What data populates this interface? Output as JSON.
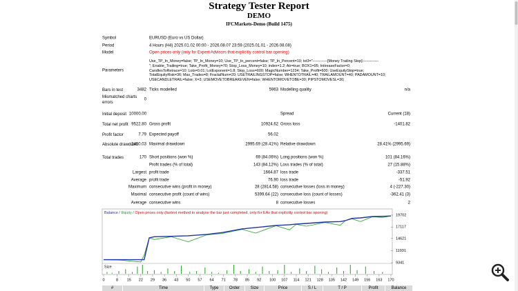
{
  "header": {
    "title": "Strategy Tester Report",
    "subtitle": "DEMO",
    "server": "IFCMarkets-Demo (Build 1475)"
  },
  "info": [
    {
      "label": "Symbol",
      "value": "EURUSD (Euro vs US Dollar)"
    },
    {
      "label": "Period",
      "value": "4 Hours (H4) 2025.01.02 00:00 - 2026.08.07 23:59 (2025.01.01 - 2026.08.08)"
    },
    {
      "label": "Model",
      "value": "Open prices only (only for Expert Advisors that explicitly control bar opening)"
    },
    {
      "label": "Parameters",
      "lines": [
        "Use_TP_In_Money=false; TP_In_Money=10; Use_TP_In_percent=false; TP_In_Percent=10; txt3=\"------------[Money Trailing Stop]-------------",
        "\"; Enable_Trailing=true; Take_Profit_Money=70; Stop_Loss_Money=10; index=1.2; Atr=true; BOX1=95; InitreaseFactor=0;",
        "CandlesToRetrace=10; Lots=0.01; LotExponent=1.8; Stop_Loss=600; MagicNumber=1234; Take_Profit=600; UseEquityStop=true;",
        "TotalEquityRisk=36; Max_Trades=8; FractalNum=20; USETRAILINGSTOP=false; WHENTOTRAIL=40; TRAILAMOUNT=40; PADAMOUNT=10;",
        "USECANDLETRAIL=false; X=3; USEMOVETOBREAKEVEN=false; WHENTOMOVETOBE=30; PIPSTOMOVESL=30;"
      ]
    }
  ],
  "stats": [
    [
      "Bars in test",
      "3482",
      "Ticks modelled",
      "5963",
      "Modelling quality",
      "n/a"
    ],
    [
      "Mismatched charts errors",
      "0",
      null,
      null,
      null,
      null
    ],
    [
      "Initial deposit",
      "10000.00",
      null,
      null,
      "Spread",
      "Current (18)"
    ],
    [
      "Total net profit",
      "9522.80",
      "Gross profit",
      "10924.62",
      "Gross loss",
      "-1401.82"
    ],
    [
      "Profit factor",
      "7.79",
      "Expected payoff",
      "56.02",
      null,
      null
    ],
    [
      "Absolute drawdown",
      "2450.03",
      "Maximal drawdown",
      "2995.69 (28.41%)",
      "Relative drawdown",
      "28.41% (2995.69)"
    ],
    [
      "Total trades",
      "170",
      "Short positions (won %)",
      "69 (84.06%)",
      "Long positions (won %)",
      "101 (84.16%)"
    ],
    [
      null,
      null,
      "Profit trades (% of total)",
      "143 (84.12%)",
      "Loss trades (% of total)",
      "27 (15.88%)"
    ],
    [
      "Largest",
      null,
      "profit trade",
      "1664.87",
      "loss trade",
      "-337.51"
    ],
    [
      "Average",
      null,
      "profit trade",
      "76.90",
      "loss trade",
      "-51.92"
    ],
    [
      "Maximum",
      null,
      "consecutive wins (profit in money)",
      "28 (2814.58)",
      "consecutive losses (loss in money)",
      "4 (-227.30)"
    ],
    [
      "Maximal",
      null,
      "consecutive profit (count of wins)",
      "5399.64 (22)",
      "consecutive loss (count of losses)",
      "-362.41 (3)"
    ],
    [
      "Average",
      null,
      "consecutive wins",
      "8",
      "consecutive losses",
      "2"
    ]
  ],
  "chart_data": {
    "type": "line",
    "note": "Open prices only (fastest method to analyse the bar just completed, only for EAs that explicitly control bar opening)",
    "legend_separator": " / ",
    "x": [
      0,
      10,
      22,
      24,
      27,
      30,
      40,
      50,
      61,
      70,
      82,
      90,
      102,
      110,
      114,
      120,
      131,
      140,
      143,
      147,
      152,
      159,
      165,
      170
    ],
    "series": [
      {
        "name": "Balance",
        "color": "#1c34a8",
        "values": [
          10000,
          10000,
          10000,
          10000,
          14750,
          15000,
          15100,
          15200,
          15500,
          15900,
          16700,
          17000,
          17450,
          17600,
          17750,
          17900,
          18200,
          18300,
          18500,
          19000,
          19100,
          19400,
          19450,
          19523
        ]
      },
      {
        "name": "Equity",
        "color": "#22a022",
        "values": [
          10000,
          9900,
          9500,
          11000,
          14750,
          14400,
          15000,
          13900,
          15400,
          15700,
          16600,
          15800,
          17400,
          16500,
          17700,
          17300,
          18100,
          17500,
          18500,
          18900,
          18300,
          19350,
          19200,
          19523
        ]
      }
    ],
    "size_series": {
      "name": "Size",
      "color": "#22a022",
      "x": [
        2,
        5,
        9,
        13,
        17,
        20,
        23,
        26,
        30,
        34,
        38,
        42,
        46,
        51,
        55,
        60,
        64,
        68,
        73,
        77,
        81,
        86,
        90,
        94,
        98,
        103,
        107,
        111,
        116,
        120,
        125,
        129,
        133,
        138,
        142,
        146,
        150,
        155,
        160,
        165
      ],
      "values": [
        0.02,
        0.01,
        0.03,
        0.05,
        0.02,
        0.08,
        0.1,
        0.03,
        0.04,
        0.02,
        0.06,
        0.03,
        0.09,
        0.02,
        0.03,
        0.07,
        0.02,
        0.01,
        0.04,
        0.1,
        0.03,
        0.05,
        0.02,
        0.08,
        0.03,
        0.04,
        0.1,
        0.02,
        0.06,
        0.03,
        0.09,
        0.05,
        0.02,
        0.07,
        0.03,
        0.1,
        0.04,
        0.08,
        0.03,
        0.02
      ]
    },
    "xlim": [
      0,
      170
    ],
    "xticks": [
      0,
      8,
      15,
      22,
      29,
      36,
      43,
      50,
      57,
      64,
      71,
      78,
      85,
      92,
      100,
      107,
      114,
      121,
      128,
      135,
      142,
      149,
      156,
      163,
      170
    ],
    "ylim": [
      9341,
      20600
    ],
    "yticks": [
      19702,
      17117,
      14621,
      11931,
      9341
    ],
    "note_color": "#e00000"
  },
  "trades": {
    "header": [
      "#",
      "Time",
      "Type",
      "Order",
      "Size",
      "Price",
      "S / L",
      "T / P",
      "Profit",
      "Balance"
    ]
  }
}
